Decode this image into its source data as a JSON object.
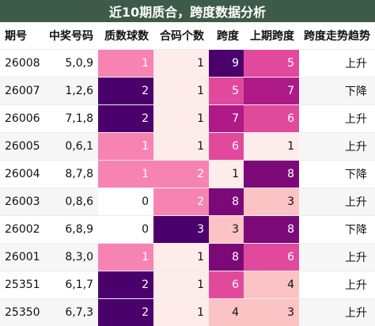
{
  "title": "近10期质合，跨度数据分析",
  "headers": [
    "期号",
    "中奖号码",
    "质数球数",
    "合码个数",
    "跨度",
    "上期跨度",
    "跨度走势趋势"
  ],
  "colors": {
    "title_bg": "#3e5b4a",
    "scale": [
      "#fdecea",
      "#fbc3c3",
      "#f783b3",
      "#e14a9c",
      "#ae1a86",
      "#7b0a78",
      "#4a016c"
    ]
  },
  "rows": [
    {
      "issue": "26008",
      "numbers": "5,0,9",
      "primes": "1",
      "composites": "1",
      "span": "9",
      "prev_span": "5",
      "trend": "上升"
    },
    {
      "issue": "26007",
      "numbers": "1,2,6",
      "primes": "2",
      "composites": "1",
      "span": "5",
      "prev_span": "7",
      "trend": "下降"
    },
    {
      "issue": "26006",
      "numbers": "7,1,8",
      "primes": "2",
      "composites": "1",
      "span": "7",
      "prev_span": "6",
      "trend": "上升"
    },
    {
      "issue": "26005",
      "numbers": "0,6,1",
      "primes": "1",
      "composites": "1",
      "span": "6",
      "prev_span": "1",
      "trend": "上升"
    },
    {
      "issue": "26004",
      "numbers": "8,7,8",
      "primes": "1",
      "composites": "2",
      "span": "1",
      "prev_span": "8",
      "trend": "下降"
    },
    {
      "issue": "26003",
      "numbers": "0,8,6",
      "primes": "0",
      "composites": "2",
      "span": "8",
      "prev_span": "3",
      "trend": "上升"
    },
    {
      "issue": "26002",
      "numbers": "6,8,9",
      "primes": "0",
      "composites": "3",
      "span": "3",
      "prev_span": "8",
      "trend": "下降"
    },
    {
      "issue": "26001",
      "numbers": "8,3,0",
      "primes": "1",
      "composites": "1",
      "span": "8",
      "prev_span": "6",
      "trend": "上升"
    },
    {
      "issue": "25351",
      "numbers": "6,1,7",
      "primes": "2",
      "composites": "1",
      "span": "6",
      "prev_span": "4",
      "trend": "上升"
    },
    {
      "issue": "25350",
      "numbers": "6,7,3",
      "primes": "2",
      "composites": "1",
      "span": "4",
      "prev_span": "3",
      "trend": "上升"
    }
  ]
}
